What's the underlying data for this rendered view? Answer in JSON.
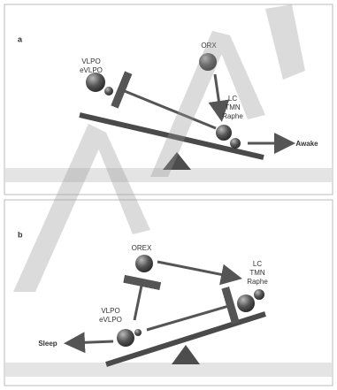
{
  "panel_a": {
    "label": "a",
    "left_labels": [
      "VLPO",
      "eVLPO"
    ],
    "top_label": "ORX",
    "right_labels": [
      "LC",
      "TMN",
      "Raphe"
    ],
    "output": "Awake"
  },
  "panel_b": {
    "label": "b",
    "left_labels": [
      "VLPO",
      "eVLPO"
    ],
    "top_label": "OREX",
    "right_labels": [
      "LC",
      "TMN",
      "Raphe"
    ],
    "output": "Sleep"
  }
}
